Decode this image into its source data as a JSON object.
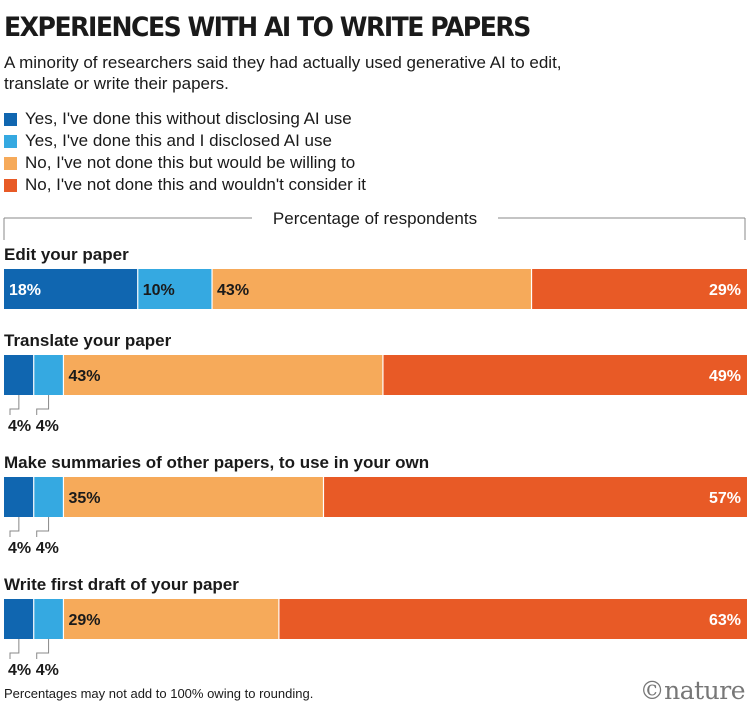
{
  "header": {
    "title": "EXPERIENCES WITH AI TO WRITE PAPERS",
    "subtitle": "A minority of researchers said they had actually used generative AI to edit, translate or write their papers."
  },
  "legend": [
    {
      "label": "Yes, I've done this without disclosing AI use",
      "color": "#1066b0"
    },
    {
      "label": "Yes, I've done this and I disclosed AI use",
      "color": "#35a9e1"
    },
    {
      "label": "No, I've not done this but would be willing to",
      "color": "#f6aa5a"
    },
    {
      "label": "No, I've not done this and wouldn't consider it",
      "color": "#e85a26"
    }
  ],
  "chart_data": {
    "type": "bar",
    "orientation": "horizontal-stacked",
    "axis_label": "Percentage of respondents",
    "unit": "%",
    "categories": [
      "Edit your paper",
      "Translate your paper",
      "Make summaries of other papers, to use in your own",
      "Write first draft of your paper"
    ],
    "series": [
      {
        "name": "Yes, I've done this without disclosing AI use",
        "values": [
          18,
          4,
          4,
          4
        ]
      },
      {
        "name": "Yes, I've done this and I disclosed AI use",
        "values": [
          10,
          4,
          4,
          4
        ]
      },
      {
        "name": "No, I've not done this but would be willing to",
        "values": [
          43,
          43,
          35,
          29
        ]
      },
      {
        "name": "No, I've not done this and wouldn't consider it",
        "values": [
          29,
          49,
          57,
          63
        ]
      }
    ]
  },
  "footnote": "Percentages may not add to 100% owing to rounding.",
  "logo": "©nature"
}
